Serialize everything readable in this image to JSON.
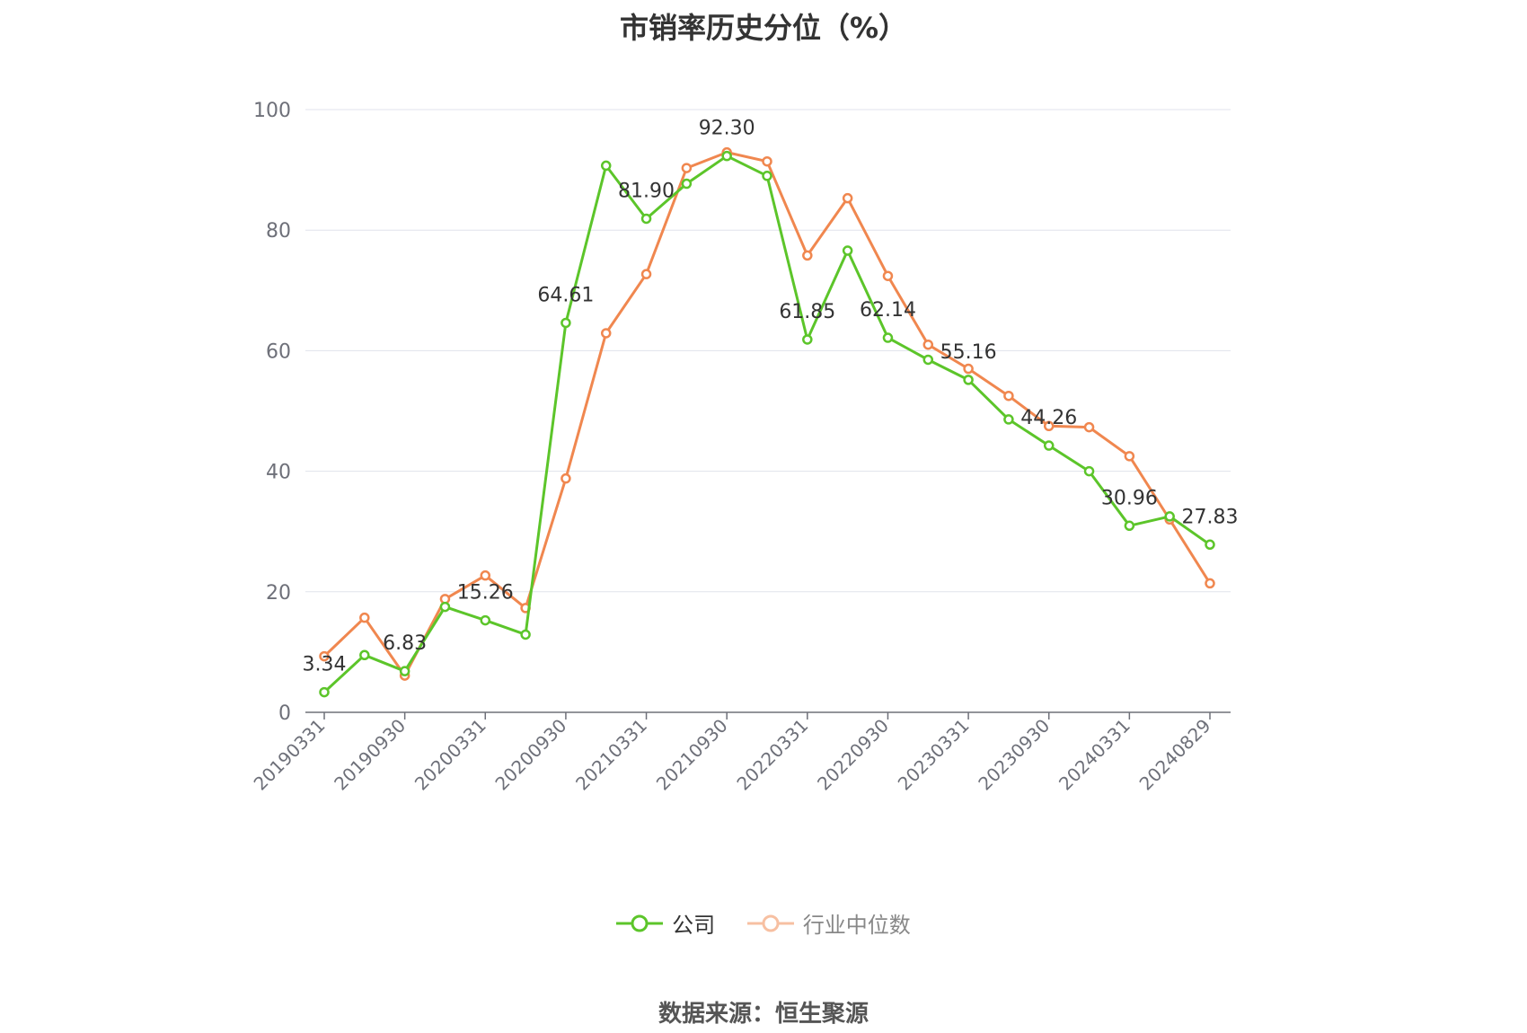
{
  "title": "市销率历史分位（%）",
  "source_note": "数据来源：恒生聚源",
  "chart_data": {
    "type": "line",
    "title": "市销率历史分位（%）",
    "xlabel": "",
    "ylabel": "",
    "ylim": [
      0,
      100
    ],
    "yticks": [
      0,
      20,
      40,
      60,
      80,
      100
    ],
    "grid": true,
    "legend_position": "bottom",
    "x_tick_labels": [
      "20190331",
      "20190930",
      "20200331",
      "20200930",
      "20210331",
      "20210930",
      "20220331",
      "20220930",
      "20230331",
      "20230930",
      "20240331",
      "20240829"
    ],
    "series": [
      {
        "name": "公司",
        "color": "#5cc52a",
        "values": [
          3.34,
          9.5,
          6.83,
          17.5,
          15.26,
          12.9,
          64.61,
          90.7,
          81.9,
          87.7,
          92.3,
          89.0,
          61.85,
          76.6,
          62.14,
          58.5,
          55.16,
          48.6,
          44.26,
          40.0,
          30.96,
          32.5,
          27.83
        ],
        "labels": [
          "3.34",
          "",
          "6.83",
          "",
          "15.26",
          "",
          "64.61",
          "",
          "81.90",
          "",
          "92.30",
          "",
          "61.85",
          "",
          "62.14",
          "",
          "55.16",
          "",
          "44.26",
          "",
          "30.96",
          "",
          "27.83"
        ]
      },
      {
        "name": "行业中位数",
        "color": "#f0874f",
        "values": [
          9.3,
          15.7,
          6.1,
          18.8,
          22.7,
          17.3,
          38.8,
          62.9,
          72.7,
          90.3,
          92.9,
          91.4,
          75.8,
          85.3,
          72.4,
          61.0,
          57.0,
          52.5,
          47.5,
          47.3,
          42.5,
          32.0,
          21.4
        ]
      }
    ]
  }
}
